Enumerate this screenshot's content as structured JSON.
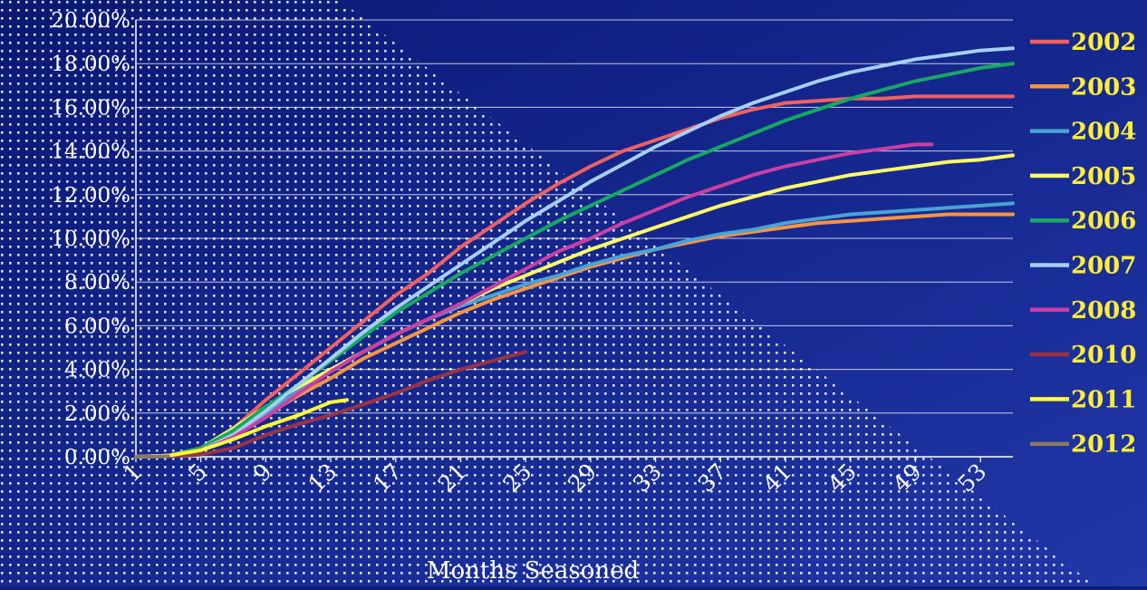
{
  "chart_data": {
    "type": "line",
    "xlabel": "Months Seasoned",
    "ylabel": "",
    "title": "",
    "xlim": [
      1,
      55
    ],
    "ylim": [
      0,
      20
    ],
    "x_ticks": [
      "1",
      "5",
      "9",
      "13",
      "17",
      "21",
      "25",
      "29",
      "33",
      "37",
      "41",
      "45",
      "49",
      "53"
    ],
    "y_ticks": [
      "0.00%",
      "2.00%",
      "4.00%",
      "6.00%",
      "8.00%",
      "10.00%",
      "12.00%",
      "14.00%",
      "16.00%",
      "18.00%",
      "20.00%"
    ],
    "grid": true,
    "legend_position": "right",
    "series": [
      {
        "name": "2002",
        "color": "#f06060",
        "x": [
          1,
          3,
          5,
          7,
          9,
          11,
          13,
          15,
          17,
          19,
          21,
          23,
          25,
          27,
          29,
          31,
          33,
          35,
          37,
          39,
          41,
          43,
          45,
          47,
          49,
          51,
          53,
          55
        ],
        "y": [
          0,
          0.05,
          0.4,
          1.3,
          2.6,
          3.8,
          5.0,
          6.2,
          7.4,
          8.4,
          9.6,
          10.6,
          11.6,
          12.5,
          13.3,
          14.0,
          14.5,
          15.0,
          15.5,
          15.9,
          16.2,
          16.3,
          16.4,
          16.4,
          16.5,
          16.5,
          16.5,
          16.5
        ]
      },
      {
        "name": "2003",
        "color": "#f79440",
        "x": [
          1,
          3,
          5,
          7,
          9,
          11,
          13,
          15,
          17,
          19,
          21,
          23,
          25,
          27,
          29,
          31,
          33,
          35,
          37,
          39,
          41,
          43,
          45,
          47,
          49,
          51,
          53,
          55
        ],
        "y": [
          0,
          0.05,
          0.3,
          1.0,
          1.9,
          2.8,
          3.6,
          4.5,
          5.2,
          5.9,
          6.6,
          7.2,
          7.7,
          8.2,
          8.7,
          9.1,
          9.5,
          9.8,
          10.1,
          10.3,
          10.5,
          10.7,
          10.8,
          10.9,
          11.0,
          11.1,
          11.1,
          11.1
        ]
      },
      {
        "name": "2004",
        "color": "#4aa3d6",
        "x": [
          1,
          3,
          5,
          7,
          9,
          11,
          13,
          15,
          17,
          19,
          21,
          23,
          25,
          27,
          29,
          31,
          33,
          35,
          37,
          39,
          41,
          43,
          45,
          47,
          49,
          51,
          53,
          55
        ],
        "y": [
          0,
          0.05,
          0.3,
          1.0,
          2.0,
          3.0,
          3.9,
          4.8,
          5.6,
          6.3,
          6.9,
          7.4,
          7.9,
          8.3,
          8.8,
          9.2,
          9.5,
          9.9,
          10.2,
          10.4,
          10.7,
          10.9,
          11.1,
          11.2,
          11.3,
          11.4,
          11.5,
          11.6
        ]
      },
      {
        "name": "2005",
        "color": "#ffff66",
        "x": [
          1,
          3,
          5,
          7,
          9,
          11,
          13,
          15,
          17,
          19,
          21,
          23,
          25,
          27,
          29,
          31,
          33,
          35,
          37,
          39,
          41,
          43,
          45,
          47,
          49,
          51,
          53,
          55
        ],
        "y": [
          0,
          0.05,
          0.4,
          1.3,
          2.3,
          3.2,
          4.0,
          4.8,
          5.6,
          6.3,
          7.0,
          7.7,
          8.3,
          8.9,
          9.5,
          10.0,
          10.5,
          11.0,
          11.5,
          11.9,
          12.3,
          12.6,
          12.9,
          13.1,
          13.3,
          13.5,
          13.6,
          13.8
        ]
      },
      {
        "name": "2006",
        "color": "#17a862",
        "x": [
          1,
          3,
          5,
          7,
          9,
          11,
          13,
          15,
          17,
          19,
          21,
          23,
          25,
          27,
          29,
          31,
          33,
          35,
          37,
          39,
          41,
          43,
          45,
          47,
          49,
          51,
          53,
          55
        ],
        "y": [
          0,
          0.05,
          0.4,
          1.2,
          2.3,
          3.3,
          4.4,
          5.5,
          6.6,
          7.5,
          8.4,
          9.2,
          10.0,
          10.8,
          11.5,
          12.2,
          12.9,
          13.6,
          14.2,
          14.8,
          15.4,
          15.9,
          16.4,
          16.8,
          17.2,
          17.5,
          17.8,
          18.0
        ]
      },
      {
        "name": "2007",
        "color": "#a6cff2",
        "x": [
          1,
          3,
          5,
          7,
          9,
          11,
          13,
          15,
          17,
          19,
          21,
          23,
          25,
          27,
          29,
          31,
          33,
          35,
          37,
          39,
          41,
          43,
          45,
          47,
          49,
          51,
          53,
          55
        ],
        "y": [
          0,
          0.05,
          0.3,
          1.0,
          2.1,
          3.3,
          4.5,
          5.7,
          6.8,
          7.8,
          8.8,
          9.8,
          10.8,
          11.7,
          12.6,
          13.4,
          14.2,
          14.9,
          15.6,
          16.2,
          16.7,
          17.2,
          17.6,
          17.9,
          18.2,
          18.4,
          18.6,
          18.7
        ]
      },
      {
        "name": "2008",
        "color": "#cc3fa3",
        "x": [
          1,
          3,
          5,
          7,
          9,
          11,
          13,
          15,
          17,
          19,
          21,
          23,
          25,
          27,
          29,
          31,
          33,
          35,
          37,
          39,
          41,
          43,
          45,
          47,
          49,
          50
        ],
        "y": [
          0,
          0.05,
          0.3,
          0.9,
          1.8,
          2.9,
          3.9,
          4.8,
          5.6,
          6.3,
          7.0,
          7.8,
          8.6,
          9.4,
          10.0,
          10.7,
          11.3,
          11.9,
          12.4,
          12.9,
          13.3,
          13.6,
          13.9,
          14.1,
          14.3,
          14.3
        ]
      },
      {
        "name": "2010",
        "color": "#993344",
        "x": [
          1,
          3,
          5,
          7,
          9,
          11,
          13,
          15,
          17,
          19,
          21,
          23,
          24,
          25
        ],
        "y": [
          0,
          0.02,
          0.1,
          0.4,
          1.0,
          1.5,
          1.9,
          2.4,
          2.9,
          3.5,
          4.0,
          4.4,
          4.6,
          4.8
        ]
      },
      {
        "name": "2011",
        "color": "#ffff33",
        "x": [
          1,
          3,
          5,
          7,
          9,
          11,
          13,
          14
        ],
        "y": [
          0,
          0.05,
          0.3,
          0.8,
          1.4,
          1.9,
          2.5,
          2.6
        ]
      },
      {
        "name": "2012",
        "color": "#8a7a66",
        "x": [
          1,
          2,
          3
        ],
        "y": [
          0,
          0.01,
          0.02
        ]
      }
    ]
  }
}
